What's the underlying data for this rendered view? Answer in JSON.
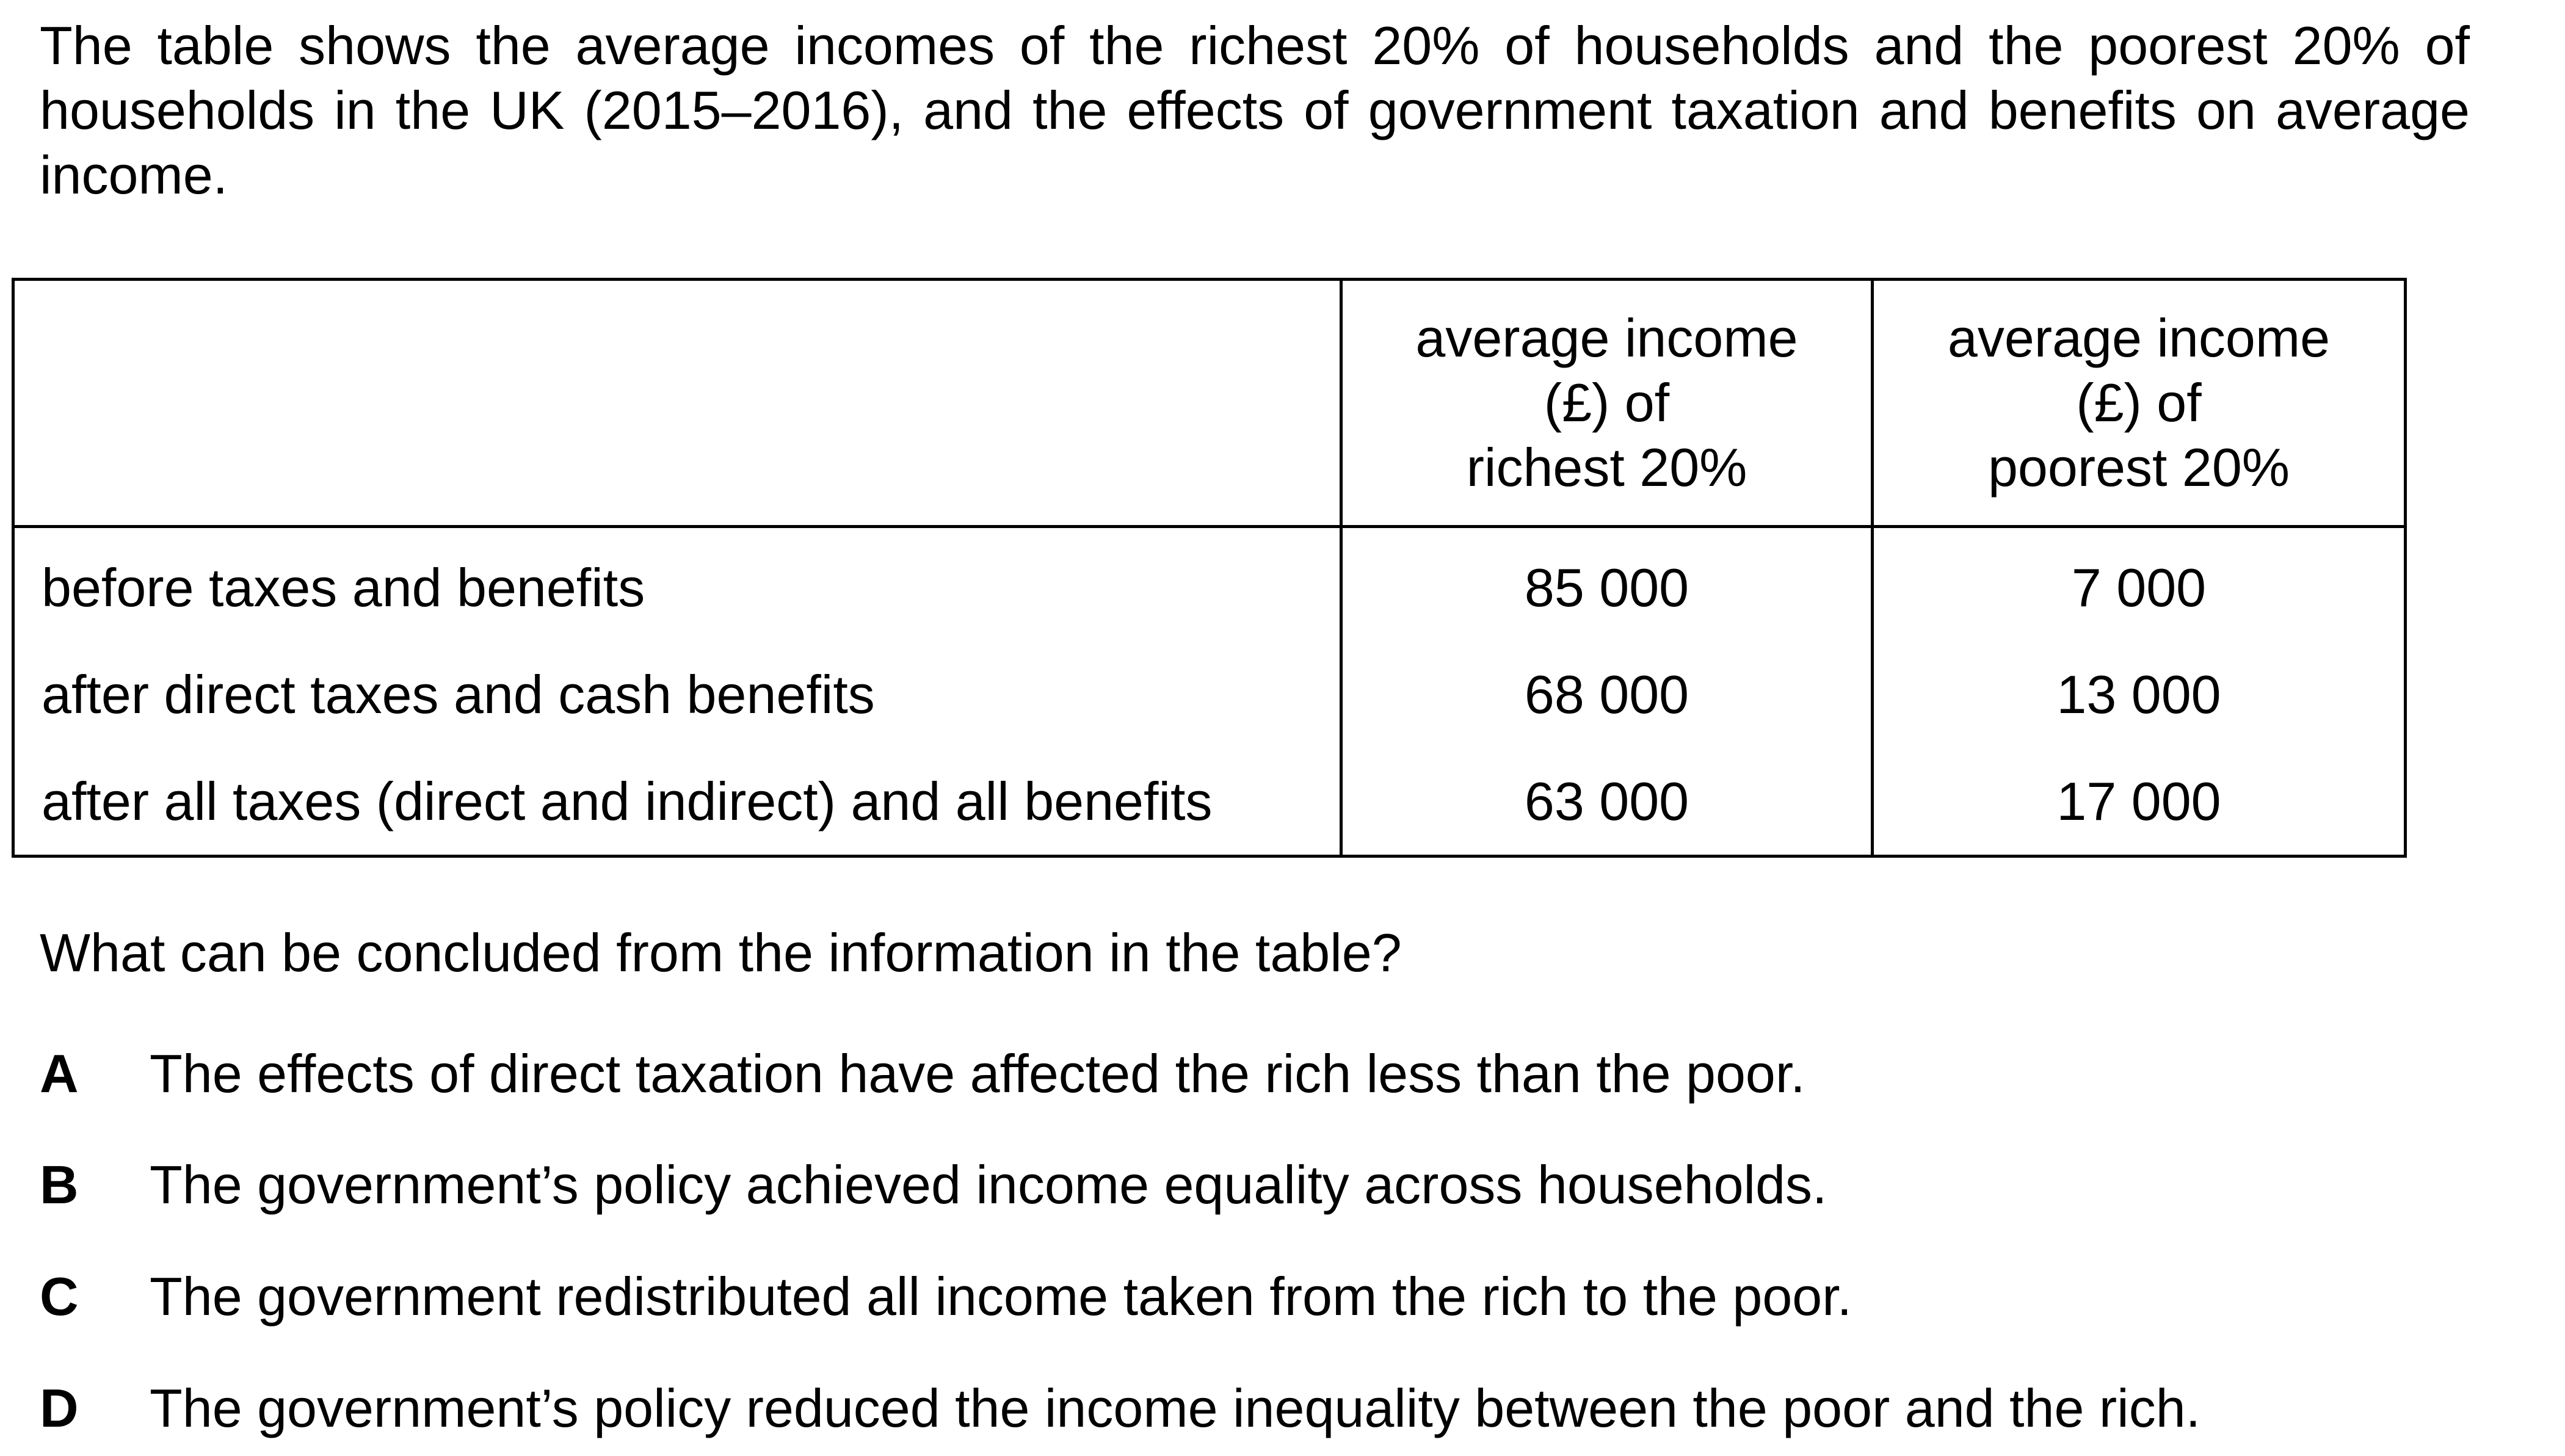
{
  "intro": "The table shows the average incomes of the richest 20% of households and the poorest 20% of households in the UK (2015–2016), and the effects of government taxation and benefits on average income.",
  "table": {
    "headers": {
      "richest": [
        "average income",
        "(£) of",
        "richest 20%"
      ],
      "poorest": [
        "average income",
        "(£) of",
        "poorest 20%"
      ]
    },
    "rows": [
      {
        "label": "before taxes and benefits",
        "richest": "85 000",
        "poorest": "7 000"
      },
      {
        "label": "after direct taxes and cash benefits",
        "richest": "68 000",
        "poorest": "13 000"
      },
      {
        "label": "after all taxes (direct and indirect) and all benefits",
        "richest": "63 000",
        "poorest": "17 000"
      }
    ]
  },
  "question": "What can be concluded from the information in the table?",
  "options": [
    {
      "letter": "A",
      "text": "The effects of direct taxation have affected the rich less than the poor."
    },
    {
      "letter": "B",
      "text": "The government’s policy achieved income equality across households."
    },
    {
      "letter": "C",
      "text": "The government redistributed all income taken from the rich to the poor."
    },
    {
      "letter": "D",
      "text": "The government’s policy reduced the income inequality between the poor and the rich."
    }
  ]
}
